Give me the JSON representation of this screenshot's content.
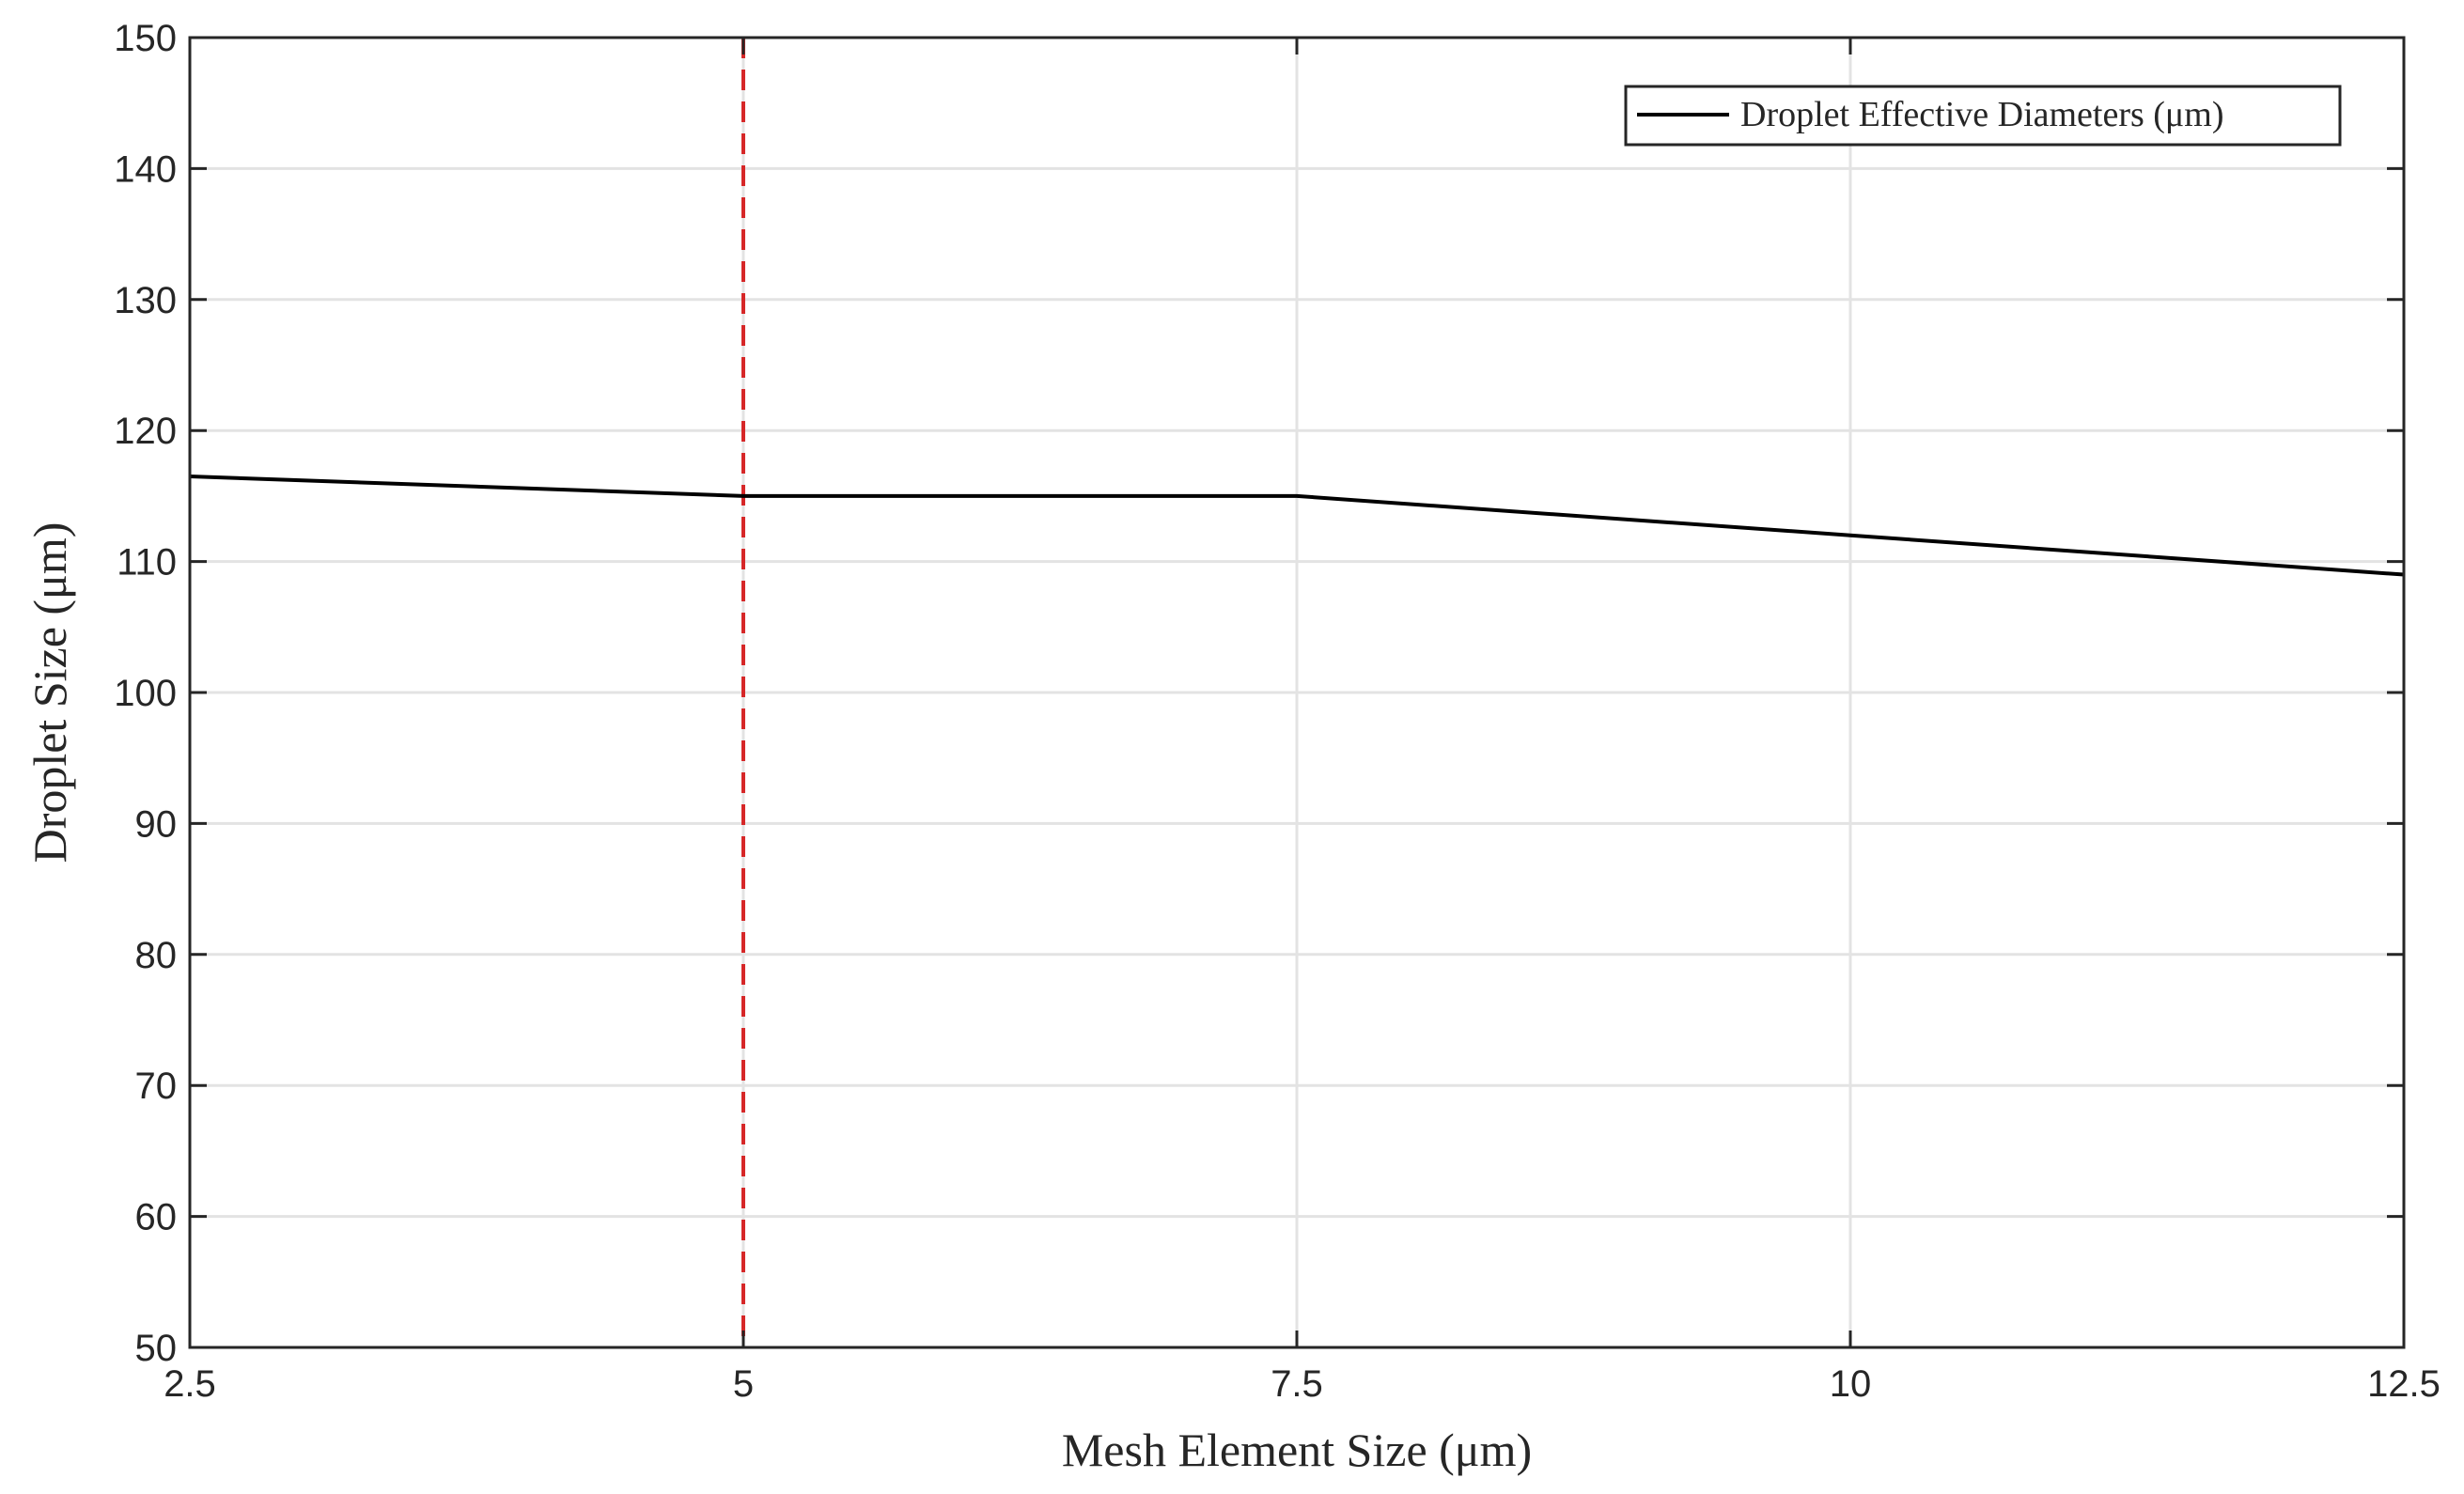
{
  "chart_data": {
    "type": "line",
    "xlabel": "Mesh Element Size (μm)",
    "ylabel": "Droplet Size (μm)",
    "xlim": [
      2.5,
      12.5
    ],
    "ylim": [
      50,
      150
    ],
    "xticks": [
      2.5,
      5,
      7.5,
      10,
      12.5
    ],
    "xtick_labels": [
      "2.5",
      "5",
      "7.5",
      "10",
      "12.5"
    ],
    "yticks": [
      50,
      60,
      70,
      80,
      90,
      100,
      110,
      120,
      130,
      140,
      150
    ],
    "ytick_labels": [
      "50",
      "60",
      "70",
      "80",
      "90",
      "100",
      "110",
      "120",
      "130",
      "140",
      "150"
    ],
    "grid": true,
    "legend_position": "top-right",
    "series": [
      {
        "name": "Droplet Effective Diameters (μm)",
        "x": [
          2.5,
          5,
          7.5,
          10,
          12.5
        ],
        "y": [
          116.5,
          115,
          115,
          112,
          109
        ],
        "color": "#000000",
        "style": "solid"
      }
    ],
    "reference_lines": [
      {
        "orientation": "vertical",
        "x": 5,
        "color": "#d62728",
        "style": "dashed"
      }
    ]
  }
}
